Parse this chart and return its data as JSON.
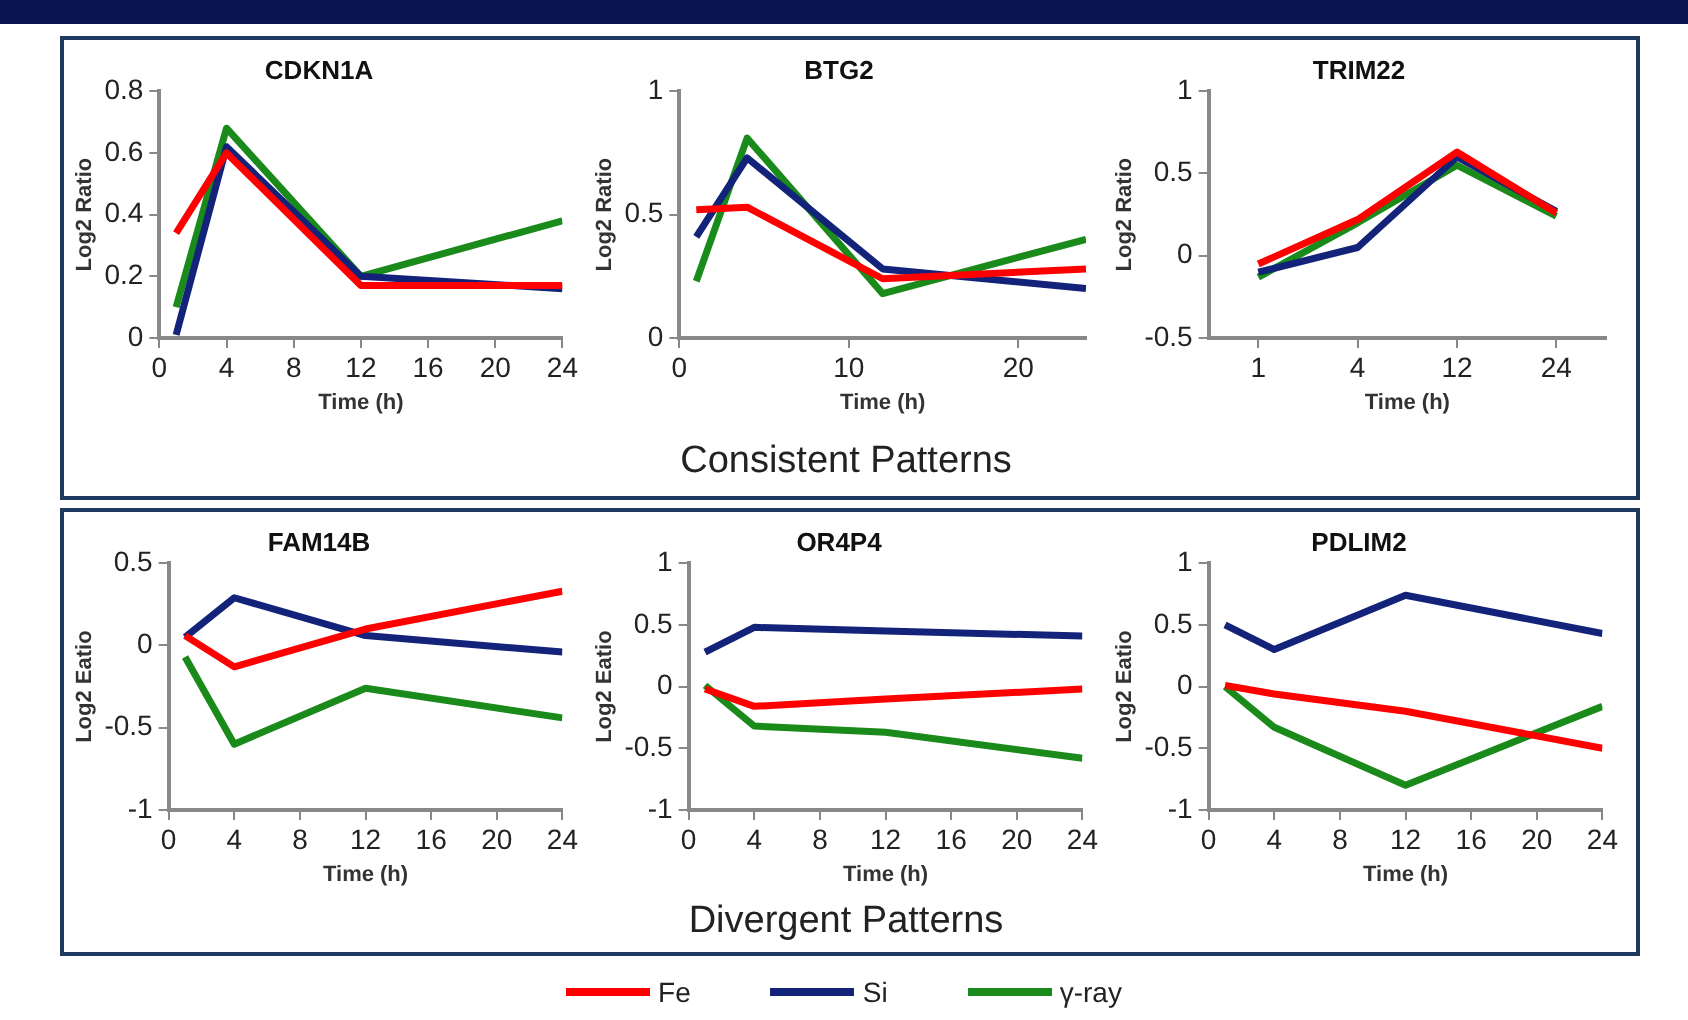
{
  "chart_data": [
    {
      "type": "line",
      "title": "CDKN1A",
      "xlabel": "Time (h)",
      "ylabel": "Log2 Ratio",
      "x": [
        1,
        4,
        12,
        24
      ],
      "xlim": [
        0,
        24
      ],
      "xticks": [
        0,
        4,
        8,
        12,
        16,
        20,
        24
      ],
      "ylim": [
        0,
        0.8
      ],
      "yticks": [
        0,
        0.2,
        0.4,
        0.6,
        0.8
      ],
      "grid": false,
      "marker": "none",
      "legend": "bottom",
      "series": [
        {
          "name": "Fe",
          "color": "#ff0000",
          "values": [
            0.34,
            0.6,
            0.17,
            0.17
          ]
        },
        {
          "name": "Si",
          "color": "#14237a",
          "values": [
            0.01,
            0.62,
            0.2,
            0.16
          ]
        },
        {
          "name": "γ-ray",
          "color": "#1a8a1a",
          "values": [
            0.1,
            0.68,
            0.2,
            0.38
          ]
        }
      ]
    },
    {
      "type": "line",
      "title": "BTG2",
      "xlabel": "Time (h)",
      "ylabel": "Log2 Ratio",
      "x": [
        1,
        4,
        12,
        24
      ],
      "xlim": [
        0,
        24
      ],
      "xticks": [
        0,
        10,
        20
      ],
      "ylim": [
        0,
        1
      ],
      "yticks": [
        0,
        0.5,
        1
      ],
      "grid": false,
      "marker": "none",
      "annotations": [
        "Consistent Patterns"
      ],
      "series": [
        {
          "color": "#ff0000",
          "values": [
            0.52,
            0.53,
            0.24,
            0.28
          ]
        },
        {
          "color": "#14237a",
          "values": [
            0.41,
            0.73,
            0.28,
            0.2
          ]
        },
        {
          "color": "#1a8a1a",
          "values": [
            0.23,
            0.81,
            0.18,
            0.4
          ]
        }
      ]
    },
    {
      "type": "line",
      "title": "TRIM22",
      "xlabel": "Time (h)",
      "ylabel": "Log2 Ratio",
      "categories": [
        "1",
        "4",
        "12",
        "24"
      ],
      "ylim": [
        -0.5,
        1
      ],
      "yticks": [
        -0.5,
        0,
        0.5,
        1
      ],
      "grid": false,
      "marker": "none",
      "series": [
        {
          "color": "#ff0000",
          "values": [
            -0.05,
            0.22,
            0.63,
            0.26
          ]
        },
        {
          "color": "#14237a",
          "values": [
            -0.1,
            0.05,
            0.6,
            0.27
          ]
        },
        {
          "color": "#1a8a1a",
          "values": [
            -0.13,
            0.2,
            0.55,
            0.24
          ]
        }
      ]
    },
    {
      "type": "line",
      "title": "FAM14B",
      "xlabel": "Time (h)",
      "ylabel": "Log2 Eatio",
      "x": [
        1,
        4,
        12,
        24
      ],
      "xlim": [
        0,
        24
      ],
      "xticks": [
        0,
        4,
        8,
        12,
        16,
        20,
        24
      ],
      "ylim": [
        -1,
        0.5
      ],
      "yticks": [
        -1,
        -0.5,
        0,
        0.5
      ],
      "grid": false,
      "marker": "none",
      "series": [
        {
          "color": "#ff0000",
          "values": [
            0.06,
            -0.13,
            0.1,
            0.33
          ]
        },
        {
          "color": "#14237a",
          "values": [
            0.05,
            0.29,
            0.06,
            -0.04
          ]
        },
        {
          "color": "#1a8a1a",
          "values": [
            -0.07,
            -0.6,
            -0.26,
            -0.44
          ]
        }
      ]
    },
    {
      "type": "line",
      "title": "OR4P4",
      "xlabel": "Time (h)",
      "ylabel": "Log2 Eatio",
      "x": [
        1,
        4,
        12,
        24
      ],
      "xlim": [
        0,
        24
      ],
      "xticks": [
        0,
        4,
        8,
        12,
        16,
        20,
        24
      ],
      "ylim": [
        -1,
        1
      ],
      "yticks": [
        -1,
        -0.5,
        0,
        0.5,
        1
      ],
      "grid": false,
      "marker": "none",
      "annotations": [
        "Divergent Patterns"
      ],
      "series": [
        {
          "color": "#ff0000",
          "values": [
            -0.02,
            -0.16,
            -0.1,
            -0.02
          ]
        },
        {
          "color": "#14237a",
          "values": [
            0.28,
            0.48,
            0.45,
            0.41
          ]
        },
        {
          "color": "#1a8a1a",
          "values": [
            0.01,
            -0.32,
            -0.37,
            -0.58
          ]
        }
      ]
    },
    {
      "type": "line",
      "title": "PDLIM2",
      "xlabel": "Time (h)",
      "ylabel": "Log2 Eatio",
      "x": [
        1,
        4,
        12,
        24
      ],
      "xlim": [
        0,
        24
      ],
      "xticks": [
        0,
        4,
        8,
        12,
        16,
        20,
        24
      ],
      "ylim": [
        -1,
        1
      ],
      "yticks": [
        -1,
        -0.5,
        0,
        0.5,
        1
      ],
      "grid": false,
      "marker": "none",
      "series": [
        {
          "color": "#ff0000",
          "values": [
            0.01,
            -0.06,
            -0.2,
            -0.5
          ]
        },
        {
          "color": "#14237a",
          "values": [
            0.5,
            0.3,
            0.74,
            0.43
          ]
        },
        {
          "color": "#1a8a1a",
          "values": [
            0,
            -0.33,
            -0.8,
            -0.16
          ]
        }
      ]
    }
  ]
}
